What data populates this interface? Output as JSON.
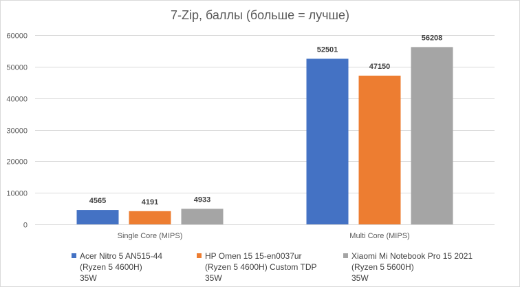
{
  "chart_data": {
    "type": "bar",
    "title": "7-Zip, баллы (больше = лучше)",
    "categories": [
      "Single Core (MIPS)",
      "Multi Core (MIPS)"
    ],
    "series": [
      {
        "name": "Acer Nitro 5 AN515-44\n(Ryzen 5 4600H)\n35W",
        "color": "#4472c4",
        "values": [
          4565,
          52501
        ]
      },
      {
        "name": "HP Omen 15 15-en0037ur\n(Ryzen 5 4600H) Custom TDP\n35W",
        "color": "#ed7d31",
        "values": [
          4191,
          47150
        ]
      },
      {
        "name": "Xiaomi Mi Notebook Pro 15 2021\n(Ryzen 5 5600H)\n35W",
        "color": "#a5a5a5",
        "values": [
          4933,
          56208
        ]
      }
    ],
    "y_ticks": [
      0,
      10000,
      20000,
      30000,
      40000,
      50000,
      60000
    ],
    "ylim": [
      0,
      60000
    ],
    "grid": true,
    "legend_position": "bottom",
    "data_labels": true
  }
}
